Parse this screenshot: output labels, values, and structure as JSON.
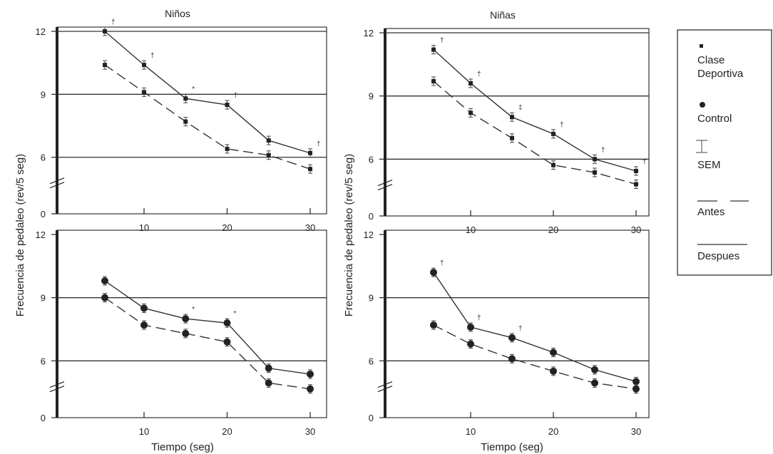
{
  "y_axis_title": "Frecuencia de pedaleo (rev/5 seg)",
  "x_axis_title": "Tiempo (seg)",
  "legend": {
    "items": [
      {
        "label_lines": [
          "Clase",
          "Deportiva"
        ]
      },
      {
        "label_lines": [
          "Control"
        ]
      },
      {
        "label_lines": [
          "SEM"
        ]
      },
      {
        "label_lines": [
          "Antes"
        ]
      },
      {
        "label_lines": [
          "Despues"
        ]
      }
    ]
  },
  "chart_data": [
    {
      "type": "line",
      "title": "Niños",
      "group": "Clase Deportiva",
      "x": [
        5,
        10,
        15,
        20,
        25,
        30
      ],
      "x_ticks": [
        "10",
        "20",
        "30"
      ],
      "y_ticks": [
        "0",
        "6",
        "9",
        "12"
      ],
      "ylim": [
        0,
        12
      ],
      "y_axis_break": true,
      "grid_lines_at": [
        6,
        9,
        12
      ],
      "series": [
        {
          "name": "Despues",
          "values": [
            12.0,
            10.4,
            8.8,
            8.5,
            6.8,
            6.2
          ]
        },
        {
          "name": "Antes",
          "values": [
            10.4,
            9.1,
            7.7,
            6.4,
            6.1,
            5.2
          ]
        }
      ],
      "significance_marks": [
        "†",
        "†",
        "*",
        "†",
        "",
        "†"
      ]
    },
    {
      "type": "line",
      "title": "Niñas",
      "group": "Clase Deportiva",
      "x": [
        5,
        10,
        15,
        20,
        25,
        30
      ],
      "x_ticks": [
        "10",
        "20",
        "30"
      ],
      "y_ticks": [
        "0",
        "6",
        "9",
        "12"
      ],
      "ylim": [
        0,
        12
      ],
      "y_axis_break": true,
      "grid_lines_at": [
        6,
        9,
        12
      ],
      "series": [
        {
          "name": "Despues",
          "values": [
            11.2,
            9.6,
            8.0,
            7.2,
            6.0,
            5.2
          ]
        },
        {
          "name": "Antes",
          "values": [
            9.7,
            8.2,
            7.0,
            5.6,
            5.1,
            4.3
          ]
        }
      ],
      "significance_marks": [
        "†",
        "†",
        "‡",
        "†",
        "†",
        "†"
      ]
    },
    {
      "type": "line",
      "title": "",
      "group": "Control",
      "x": [
        5,
        10,
        15,
        20,
        25,
        30
      ],
      "x_ticks": [
        "10",
        "20",
        "30"
      ],
      "y_ticks": [
        "0",
        "6",
        "9",
        "12"
      ],
      "ylim": [
        0,
        12
      ],
      "y_axis_break": true,
      "grid_lines_at": [
        6,
        9
      ],
      "series": [
        {
          "name": "Despues",
          "values": [
            9.8,
            8.5,
            8.0,
            7.8,
            5.5,
            5.1
          ]
        },
        {
          "name": "Antes",
          "values": [
            9.0,
            7.7,
            7.3,
            6.9,
            4.5,
            4.1
          ]
        }
      ],
      "significance_marks": [
        "",
        "",
        "*",
        "*",
        "",
        ""
      ]
    },
    {
      "type": "line",
      "title": "",
      "group": "Control",
      "x": [
        5,
        10,
        15,
        20,
        25,
        30
      ],
      "x_ticks": [
        "10",
        "20",
        "30"
      ],
      "y_ticks": [
        "0",
        "6",
        "9",
        "12"
      ],
      "ylim": [
        0,
        12
      ],
      "y_axis_break": true,
      "grid_lines_at": [
        6,
        9
      ],
      "series": [
        {
          "name": "Despues",
          "values": [
            10.2,
            7.6,
            7.1,
            6.4,
            5.4,
            4.6
          ]
        },
        {
          "name": "Antes",
          "values": [
            7.7,
            6.8,
            6.1,
            5.3,
            4.5,
            4.1
          ]
        }
      ],
      "significance_marks": [
        "†",
        "†",
        "†",
        "",
        "",
        ""
      ]
    }
  ]
}
